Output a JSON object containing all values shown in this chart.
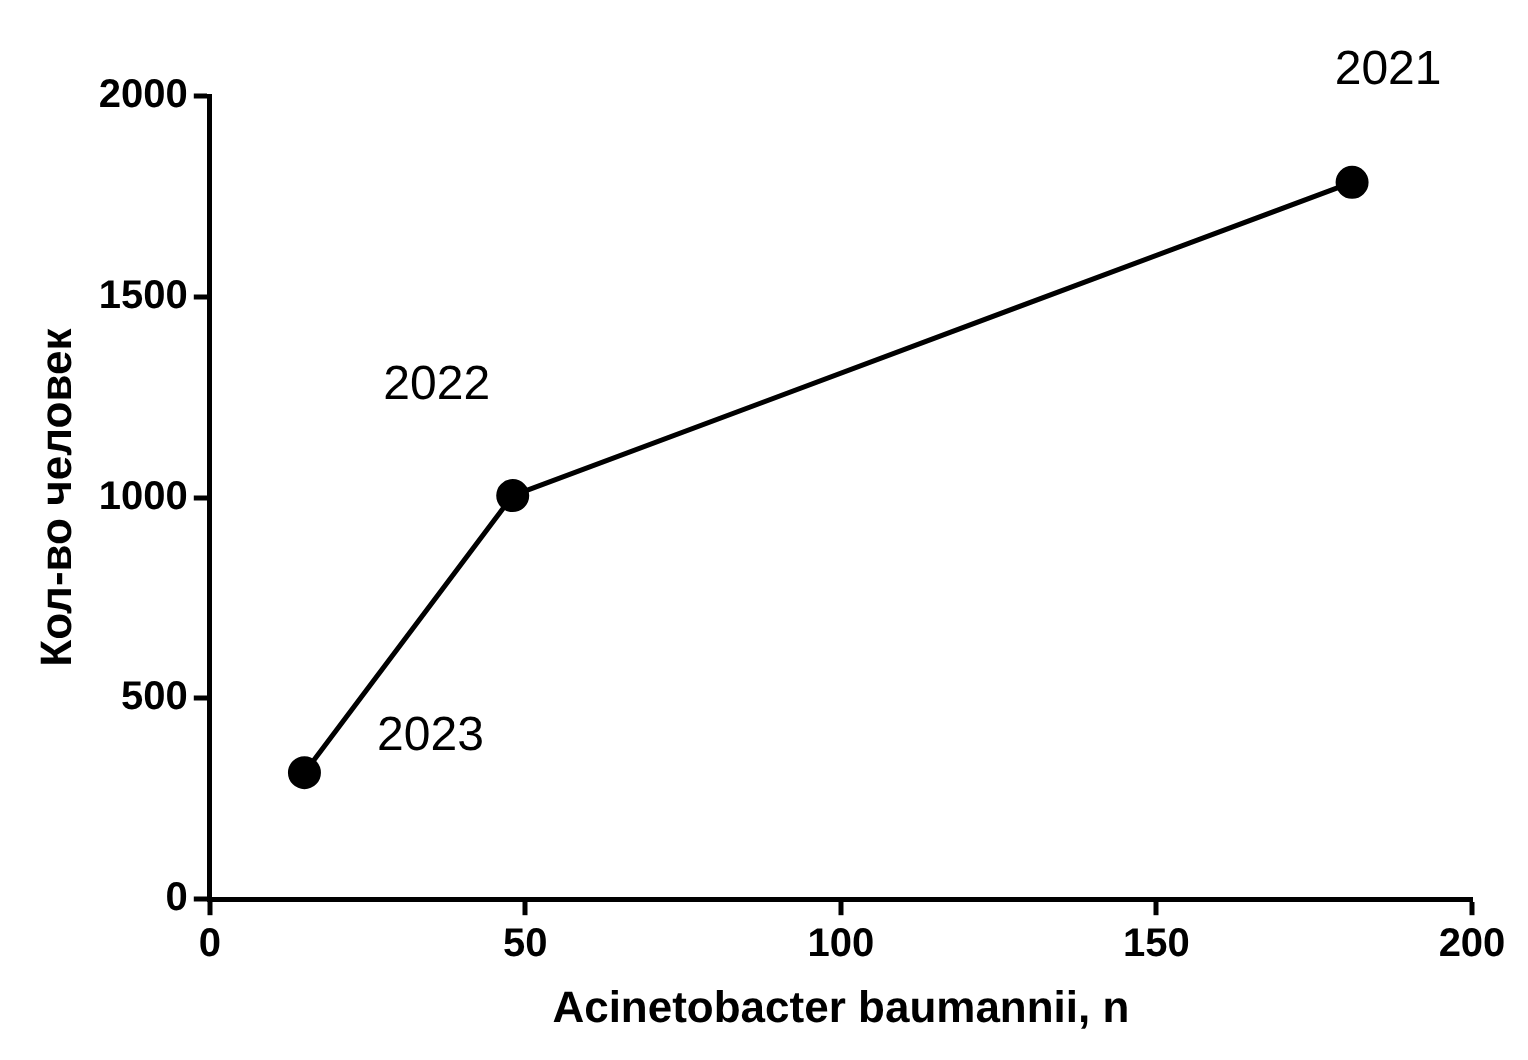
{
  "chart_data": {
    "type": "line",
    "xlabel": "Acinetobacter baumannii, n",
    "ylabel": "Кол-во человек",
    "series": [
      {
        "color": "#000000",
        "x": [
          15,
          48,
          181
        ],
        "values": [
          315,
          1005,
          1785
        ]
      }
    ],
    "xlim": [
      0,
      200
    ],
    "xticks": [
      0,
      50,
      100,
      150,
      200
    ],
    "ylim": [
      0,
      2000
    ],
    "yticks": [
      0,
      500,
      1000,
      1500,
      2000
    ],
    "grid": false,
    "legend": false,
    "marker": "circle",
    "line_style": "solid",
    "annotations": [
      {
        "text": "2023",
        "x": 15,
        "y": 315
      },
      {
        "text": "2022",
        "x": 48,
        "y": 1005
      },
      {
        "text": "2021",
        "x": 181,
        "y": 1785
      }
    ]
  }
}
